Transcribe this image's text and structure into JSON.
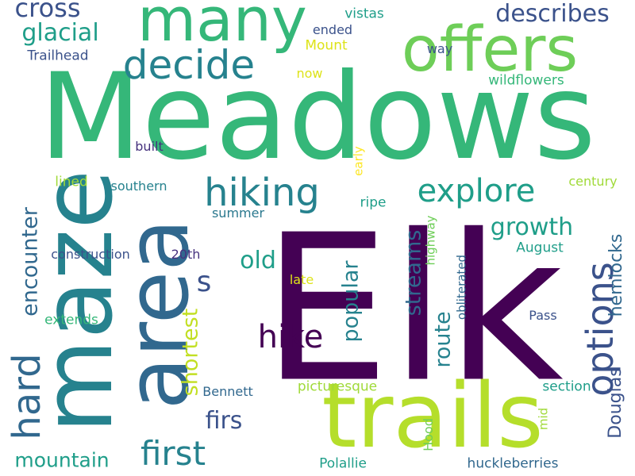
{
  "words": [
    {
      "text": "Meadows",
      "color": "#35b779"
    },
    {
      "text": "Elk",
      "color": "#440154"
    },
    {
      "text": "trails",
      "color": "#b5de2b"
    },
    {
      "text": "maze",
      "color": "#26828e"
    },
    {
      "text": "area",
      "color": "#31688e"
    },
    {
      "text": "many",
      "color": "#35b779"
    },
    {
      "text": "offers",
      "color": "#6ece58"
    },
    {
      "text": "decide",
      "color": "#26828e"
    },
    {
      "text": "hiking",
      "color": "#26828e"
    },
    {
      "text": "options",
      "color": "#3b528b"
    },
    {
      "text": "explore",
      "color": "#1f9e89"
    },
    {
      "text": "hike",
      "color": "#440154"
    },
    {
      "text": "first",
      "color": "#26828e"
    },
    {
      "text": "hard",
      "color": "#31688e"
    },
    {
      "text": "cross",
      "color": "#3b528b"
    },
    {
      "text": "glacial",
      "color": "#1f9e89"
    },
    {
      "text": "describes",
      "color": "#3b528b"
    },
    {
      "text": "encounter",
      "color": "#31688e"
    },
    {
      "text": "shortest",
      "color": "#c2df23"
    },
    {
      "text": "popular",
      "color": "#26828e"
    },
    {
      "text": "streams",
      "color": "#31688e"
    },
    {
      "text": "route",
      "color": "#26828e"
    },
    {
      "text": "old",
      "color": "#1f9e89"
    },
    {
      "text": "growth",
      "color": "#1f9e89"
    },
    {
      "text": "hemlocks",
      "color": "#31688e"
    },
    {
      "text": "Douglas",
      "color": "#3b528b"
    },
    {
      "text": "firs",
      "color": "#3b528b"
    },
    {
      "text": "mountain",
      "color": "#1f9e89"
    },
    {
      "text": "s",
      "color": "#3b528b"
    },
    {
      "text": "Trailhead",
      "color": "#3b528b"
    },
    {
      "text": "vistas",
      "color": "#1f9e89"
    },
    {
      "text": "ended",
      "color": "#3b528b"
    },
    {
      "text": "Mount",
      "color": "#dde318"
    },
    {
      "text": "way",
      "color": "#3b528b"
    },
    {
      "text": "now",
      "color": "#dde318"
    },
    {
      "text": "wildflowers",
      "color": "#35b779"
    },
    {
      "text": "built",
      "color": "#46327e"
    },
    {
      "text": "early",
      "color": "#fde725"
    },
    {
      "text": "lined",
      "color": "#a0da39"
    },
    {
      "text": "southern",
      "color": "#26828e"
    },
    {
      "text": "century",
      "color": "#a0da39"
    },
    {
      "text": "ripe",
      "color": "#1f9e89"
    },
    {
      "text": "summer",
      "color": "#2a788e"
    },
    {
      "text": "highway",
      "color": "#6ece58"
    },
    {
      "text": "construction",
      "color": "#3b528b"
    },
    {
      "text": "20th",
      "color": "#46327e"
    },
    {
      "text": "August",
      "color": "#1f9e89"
    },
    {
      "text": "obliterated",
      "color": "#31688e"
    },
    {
      "text": "late",
      "color": "#dde318"
    },
    {
      "text": "extends",
      "color": "#35b779"
    },
    {
      "text": "Pass",
      "color": "#3b528b"
    },
    {
      "text": "Bennett",
      "color": "#31688e"
    },
    {
      "text": "picturesque",
      "color": "#a0da39"
    },
    {
      "text": "section",
      "color": "#1f9e89"
    },
    {
      "text": "mid",
      "color": "#a0da39"
    },
    {
      "text": "Hood",
      "color": "#6ece58"
    },
    {
      "text": "Polallie",
      "color": "#1f9e89"
    },
    {
      "text": "huckleberries",
      "color": "#31688e"
    }
  ]
}
